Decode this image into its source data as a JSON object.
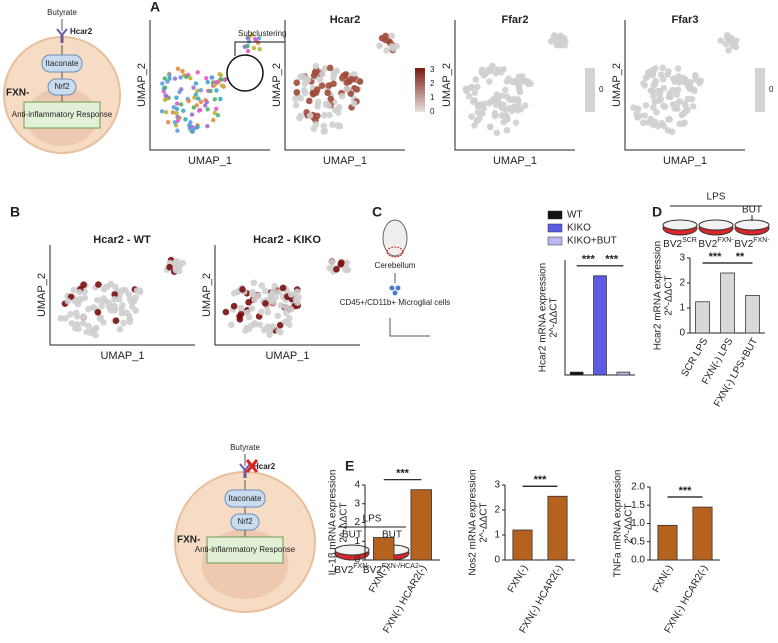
{
  "panels": {
    "A": "A",
    "B": "B",
    "C": "C",
    "D": "D",
    "E": "E"
  },
  "schematic_top": {
    "ligand": "Butyrate",
    "receptor": "Hcar2",
    "cell": "FXN-",
    "node1": "Itaconate",
    "node2": "Nrf2",
    "response": "Anti-inflammatory Response"
  },
  "umap_a": {
    "x_label": "UMAP_1",
    "y_label": "UMAP_2",
    "callout": "Subclustering",
    "titles": [
      "Hcar2",
      "Ffar2",
      "Ffar3"
    ],
    "colorbar_ticks": [
      0,
      1,
      2,
      3
    ],
    "zero_bar_ticks": [
      0,
      0
    ]
  },
  "umap_b": {
    "titles": [
      "Hcar2 - WT",
      "Hcar2 - KIKO"
    ],
    "x_label": "UMAP_1",
    "y_label": "UMAP_2"
  },
  "schematic_c": {
    "tissue": "Cerebellum",
    "cells": "CD45+/CD11b+ Microglial cells"
  },
  "schematic_d": {
    "treatment": "LPS",
    "added": "BUT",
    "dishes": [
      {
        "base": "BV2",
        "sup": "SCR"
      },
      {
        "base": "BV2",
        "sup": "FXN-"
      },
      {
        "base": "BV2",
        "sup": "FXN-"
      }
    ]
  },
  "schematic_bottom": {
    "ligand": "Butyrate",
    "receptor": "Hcar2",
    "cell": "FXN-",
    "node1": "Itaconate",
    "node2": "Nrf2",
    "response": "Anti-inflammatory Response",
    "treatment": "LPS",
    "added": [
      "BUT",
      "BUT"
    ],
    "dishes": [
      {
        "base": "BV2",
        "sup": "FXN-"
      },
      {
        "base": "BV2",
        "sup": "FXN-/HCA2-"
      }
    ]
  },
  "chart_data": [
    {
      "type": "bar",
      "y_label": [
        "Hcar2 mRNA expression",
        "2^-ΔΔCT"
      ],
      "categories": [
        "WT",
        "KIKO",
        "KIKO+BUT"
      ],
      "values": [
        1,
        34.5,
        1
      ],
      "colors": [
        "#111111",
        "#5b5be6",
        "#b8b8ee"
      ],
      "ylim": [
        0,
        40
      ],
      "significance": [
        "***",
        "***"
      ],
      "legend": true
    },
    {
      "type": "bar",
      "y_label": [
        "Hcar2 mRNA expression",
        "2^-ΔΔCT"
      ],
      "categories": [
        "SCR LPS",
        "FXN(-) LPS",
        "FXN(-) LPS+BUT"
      ],
      "values": [
        1.25,
        2.4,
        1.5
      ],
      "colors": [
        "#d9d9d9",
        "#d9d9d9",
        "#d9d9d9"
      ],
      "ylim": [
        0,
        3
      ],
      "yticks": [
        0,
        1,
        2,
        3
      ],
      "significance": [
        "***",
        "**"
      ]
    },
    {
      "type": "bar",
      "y_label": [
        "IL-1β mRNA expression",
        "2^-ΔΔCT"
      ],
      "categories": [
        "FXN(-)",
        "FXN(-) HCAR2(-)"
      ],
      "values": [
        1.2,
        3.75
      ],
      "colors": [
        "#b5621e",
        "#b5621e"
      ],
      "ylim": [
        0,
        4
      ],
      "yticks": [
        0,
        1,
        2,
        3,
        4
      ],
      "significance": [
        "***"
      ]
    },
    {
      "type": "bar",
      "y_label": [
        "Nos2 mRNA expression",
        "2^-ΔΔCT"
      ],
      "categories": [
        "FXN(-)",
        "FXN(-) HCAR2(-)"
      ],
      "values": [
        1.2,
        2.55
      ],
      "colors": [
        "#b5621e",
        "#b5621e"
      ],
      "ylim": [
        0,
        3
      ],
      "yticks": [
        0,
        1,
        2,
        3
      ],
      "significance": [
        "***"
      ]
    },
    {
      "type": "bar",
      "y_label": [
        "TNFa mRNA expression",
        "2^-ΔΔCT"
      ],
      "categories": [
        "FXN(-)",
        "FXN(-) HCAR2(-)"
      ],
      "values": [
        0.95,
        1.45
      ],
      "colors": [
        "#b5621e",
        "#b5621e"
      ],
      "ylim": [
        0,
        2
      ],
      "yticks": [
        {
          "value": 0,
          "label": "0.0"
        },
        {
          "value": 0.5,
          "label": "0.5"
        },
        {
          "value": 1,
          "label": "1.0"
        },
        {
          "value": 1.5,
          "label": "1.5"
        },
        {
          "value": 2,
          "label": "2.0"
        }
      ],
      "significance": [
        "***"
      ]
    }
  ]
}
